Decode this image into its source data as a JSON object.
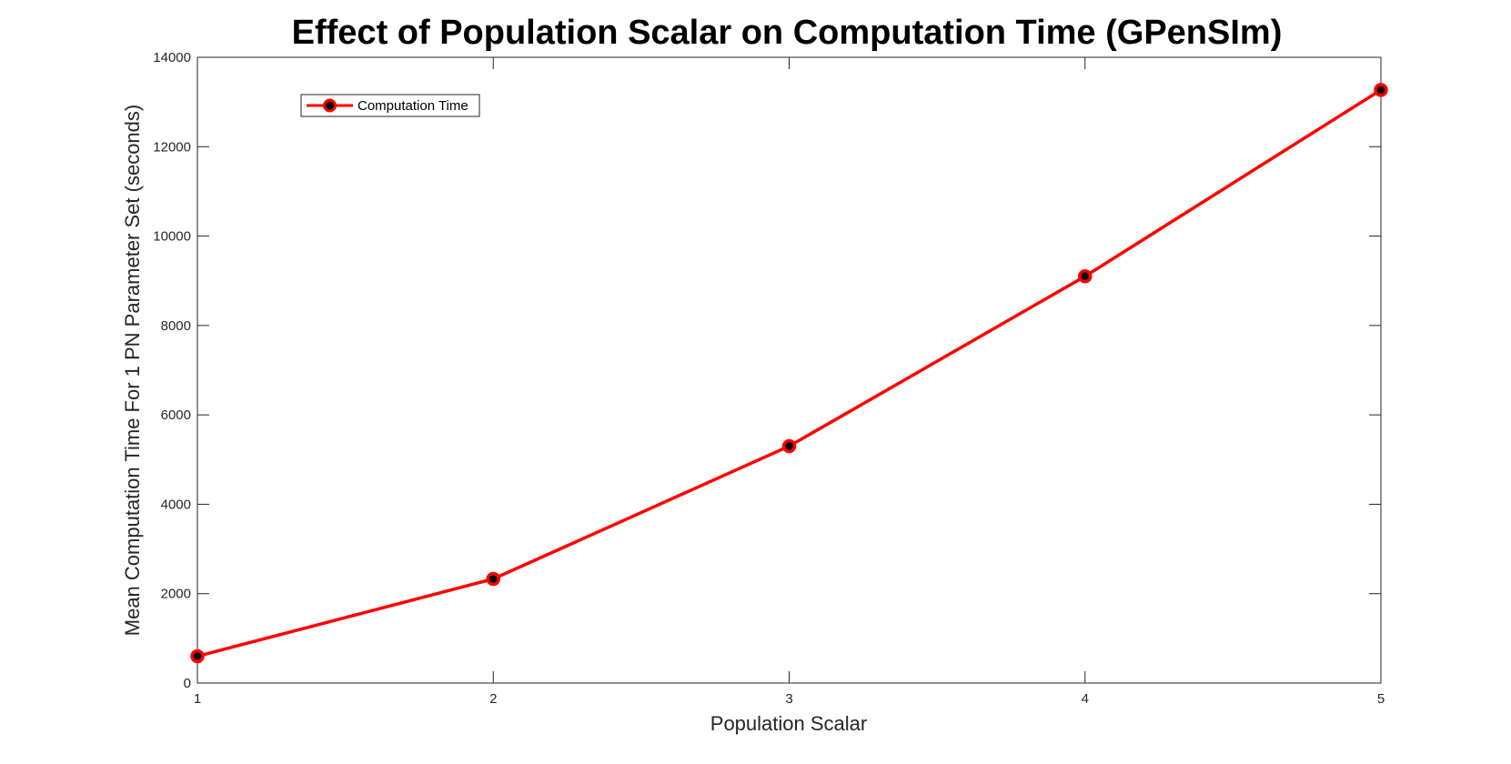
{
  "chart_data": {
    "type": "line",
    "title": "Effect of Population Scalar on Computation Time (GPenSIm)",
    "xlabel": "Population Scalar",
    "ylabel": "Mean Computation Time For 1 PN Parameter Set (seconds)",
    "x": [
      1,
      2,
      3,
      4,
      5
    ],
    "series": [
      {
        "name": "Computation Time",
        "values": [
          600,
          2330,
          5300,
          9100,
          13270
        ],
        "line_color": "#ff0000",
        "marker_edge_color": "#ff0000",
        "marker_face_color": "#000000",
        "marker": "circle"
      }
    ],
    "xlim": [
      1,
      5
    ],
    "ylim": [
      0,
      14000
    ],
    "xticks": [
      "1",
      "2",
      "3",
      "4",
      "5"
    ],
    "yticks": [
      "0",
      "2000",
      "4000",
      "6000",
      "8000",
      "10000",
      "12000",
      "14000"
    ],
    "grid": false,
    "legend_position": "top-left"
  }
}
